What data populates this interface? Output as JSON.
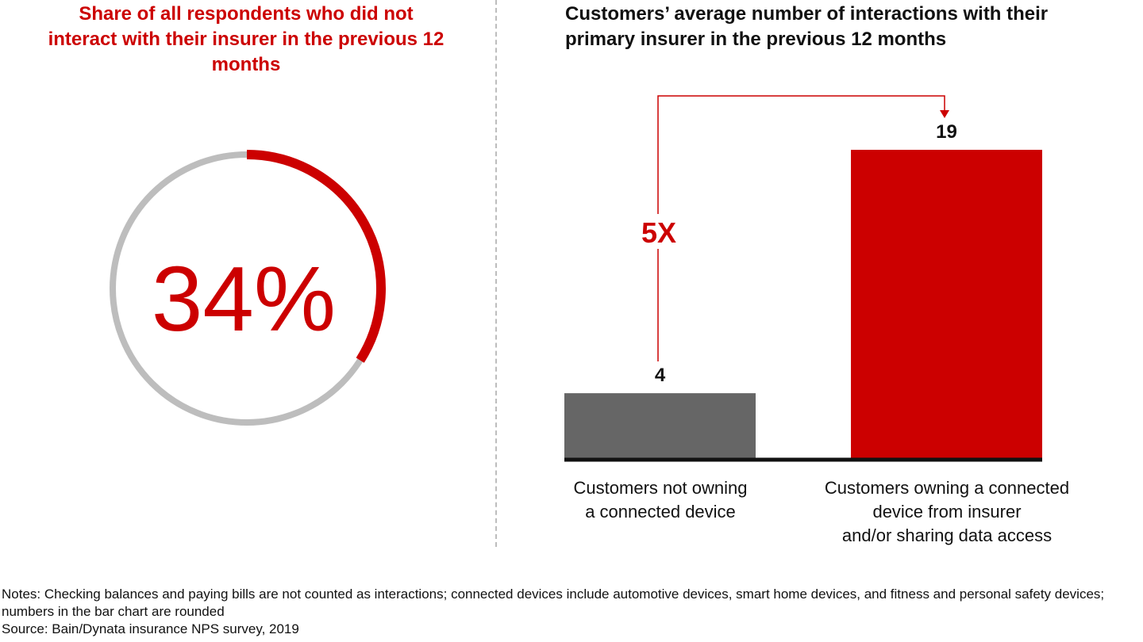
{
  "donut": {
    "title": "Share of all respondents who did not interact with their insurer in the previous 12 months",
    "value_label": "34%",
    "value": 34,
    "colors": {
      "highlight": "#cc0000",
      "remainder": "#bdbdbd"
    }
  },
  "chart_data": {
    "type": "bar",
    "title": "Customers’ average number of interactions with their primary insurer in the previous 12 months",
    "categories": [
      "Customers not owning\na connected device",
      "Customers owning a connected\ndevice from insurer\nand/or sharing data access"
    ],
    "values": [
      4,
      19
    ],
    "value_labels": [
      "4",
      "19"
    ],
    "colors": [
      "#666666",
      "#cc0000"
    ],
    "annotation": "5X",
    "annotation_color": "#cc0000",
    "xlabel": "",
    "ylabel": "",
    "ylim": [
      0,
      19
    ],
    "grid": false,
    "legend": "none"
  },
  "footer": {
    "notes": "Notes: Checking balances and paying bills are not counted as interactions; connected devices include automotive devices, smart home devices, and fitness and personal safety devices; numbers in the bar chart are rounded",
    "source": "Source: Bain/Dynata insurance NPS survey, 2019"
  }
}
